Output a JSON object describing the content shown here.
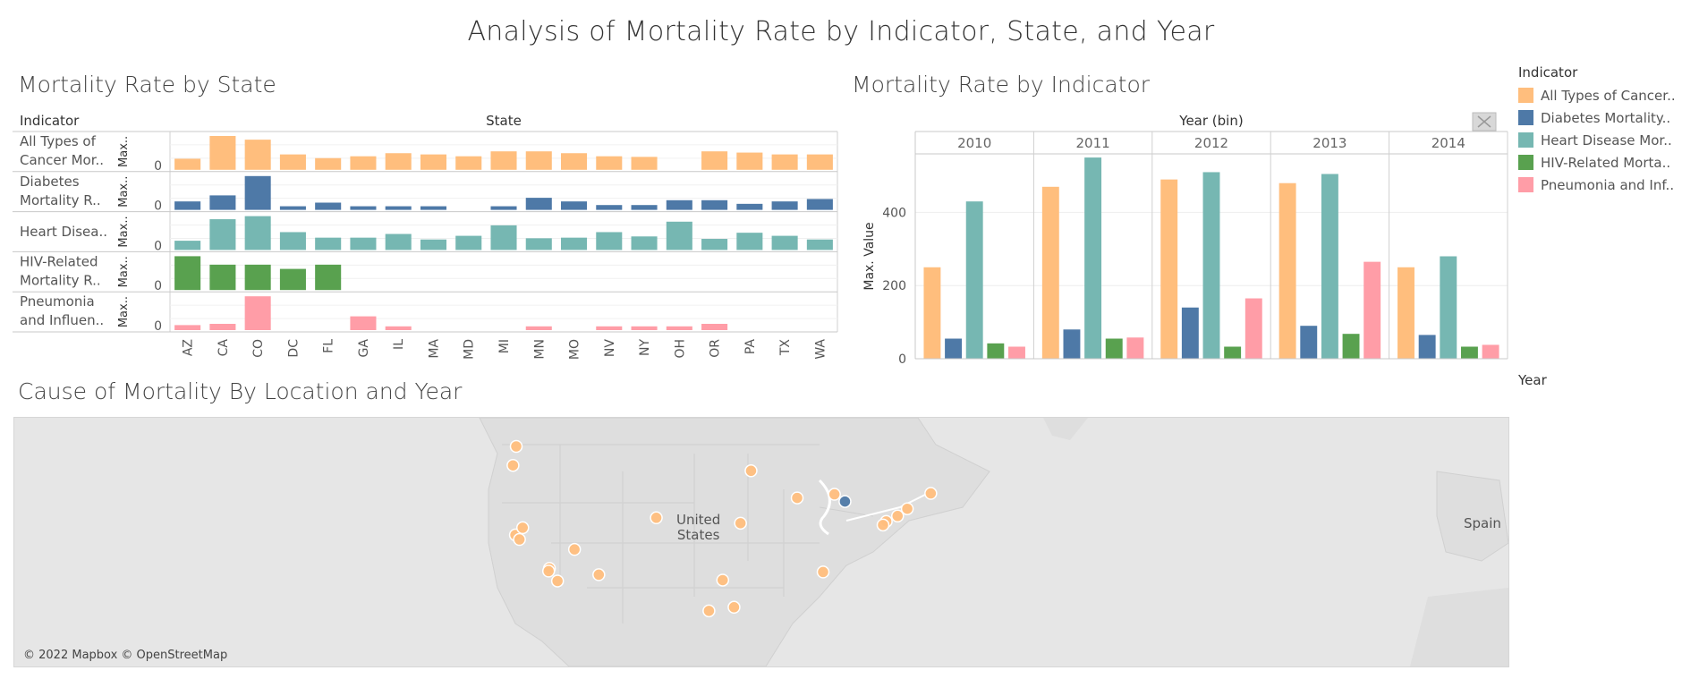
{
  "dashboard": {
    "title": "Analysis of Mortality Rate by Indicator, State, and Year"
  },
  "colors": {
    "All Types of Cancer": "#ffbe7d",
    "Diabetes": "#4e79a7",
    "Heart Disease": "#76b7b2",
    "HIV": "#59a14f",
    "Pneumonia": "#ff9da7"
  },
  "legend": {
    "title": "Indicator",
    "items": [
      {
        "label": "All Types of Cancer..",
        "color": "#ffbe7d"
      },
      {
        "label": "Diabetes Mortality..",
        "color": "#4e79a7"
      },
      {
        "label": "Heart Disease Mor..",
        "color": "#76b7b2"
      },
      {
        "label": "HIV-Related Morta..",
        "color": "#59a14f"
      },
      {
        "label": "Pneumonia and Inf..",
        "color": "#ff9da7"
      }
    ]
  },
  "filters": {
    "year_label": "Year"
  },
  "chart_data": [
    {
      "type": "bar",
      "title": "Mortality Rate by State",
      "row_header": "Indicator",
      "column_header": "State",
      "ylabel": "Max..",
      "zero_label": "0",
      "categories": [
        "AZ",
        "CA",
        "CO",
        "DC",
        "FL",
        "GA",
        "IL",
        "MA",
        "MD",
        "MI",
        "MN",
        "MO",
        "NV",
        "NY",
        "OH",
        "OR",
        "PA",
        "TX",
        "WA"
      ],
      "series": [
        {
          "label_lines": [
            "All Types of",
            "Cancer Mor.."
          ],
          "color": "#ffbe7d",
          "max": 550,
          "values": [
            180,
            550,
            490,
            250,
            190,
            220,
            270,
            250,
            220,
            300,
            300,
            270,
            220,
            210,
            null,
            300,
            280,
            250,
            250
          ]
        },
        {
          "label_lines": [
            "Diabetes",
            "Mortality R.."
          ],
          "color": "#4e79a7",
          "max": 140,
          "values": [
            35,
            60,
            140,
            15,
            30,
            15,
            15,
            15,
            null,
            15,
            50,
            35,
            20,
            20,
            40,
            40,
            25,
            35,
            45
          ]
        },
        {
          "label_lines": [
            "Heart Disea.."
          ],
          "color": "#76b7b2",
          "max": 550,
          "values": [
            150,
            500,
            550,
            290,
            200,
            200,
            260,
            170,
            230,
            400,
            190,
            200,
            290,
            220,
            460,
            180,
            280,
            230,
            170
          ]
        },
        {
          "label_lines": [
            "HIV-Related",
            "Mortality R.."
          ],
          "color": "#59a14f",
          "max": 40,
          "values": [
            40,
            30,
            30,
            25,
            30,
            null,
            null,
            null,
            null,
            null,
            null,
            null,
            null,
            null,
            null,
            null,
            null,
            null,
            null
          ]
        },
        {
          "label_lines": [
            "Pneumonia",
            "and Influen.."
          ],
          "color": "#ff9da7",
          "max": 270,
          "values": [
            40,
            50,
            270,
            null,
            null,
            110,
            30,
            null,
            null,
            null,
            30,
            null,
            30,
            30,
            30,
            50,
            null,
            null,
            null
          ]
        }
      ]
    },
    {
      "type": "bar",
      "title": "Mortality Rate by Indicator",
      "column_header": "Year (bin)",
      "ylabel": "Max. Value",
      "ylim": [
        0,
        560
      ],
      "yticks": [
        0,
        200,
        400
      ],
      "categories": [
        "2010",
        "2011",
        "2012",
        "2013",
        "2014"
      ],
      "series": [
        {
          "color": "#ffbe7d",
          "values": [
            250,
            470,
            490,
            480,
            250
          ]
        },
        {
          "color": "#4e79a7",
          "values": [
            55,
            80,
            140,
            90,
            65
          ]
        },
        {
          "color": "#76b7b2",
          "values": [
            430,
            550,
            510,
            505,
            280
          ]
        },
        {
          "color": "#59a14f",
          "values": [
            42,
            55,
            33,
            68,
            33
          ]
        },
        {
          "color": "#ff9da7",
          "values": [
            33,
            58,
            165,
            265,
            38
          ]
        }
      ]
    }
  ],
  "map": {
    "title": "Cause of Mortality By Location and Year",
    "attribution": "© 2022 Mapbox © OpenStreetMap",
    "labels": {
      "country_line1": "United",
      "country_line2": "States",
      "spain": "Spain"
    },
    "points": [
      {
        "lon": -122.3,
        "lat": 47.6,
        "color": "#ffbe7d"
      },
      {
        "lon": -122.7,
        "lat": 45.5,
        "color": "#ffbe7d"
      },
      {
        "lon": -122.4,
        "lat": 37.8,
        "color": "#ffbe7d"
      },
      {
        "lon": -121.9,
        "lat": 37.3,
        "color": "#ffbe7d"
      },
      {
        "lon": -121.5,
        "lat": 38.6,
        "color": "#ffbe7d"
      },
      {
        "lon": -118.2,
        "lat": 34.1,
        "color": "#ffbe7d"
      },
      {
        "lon": -118.3,
        "lat": 33.8,
        "color": "#ffbe7d"
      },
      {
        "lon": -117.2,
        "lat": 32.7,
        "color": "#ffbe7d"
      },
      {
        "lon": -115.1,
        "lat": 36.2,
        "color": "#ffbe7d"
      },
      {
        "lon": -112.1,
        "lat": 33.4,
        "color": "#ffbe7d"
      },
      {
        "lon": -105.0,
        "lat": 39.7,
        "color": "#ffbe7d"
      },
      {
        "lon": -94.6,
        "lat": 39.1,
        "color": "#ffbe7d"
      },
      {
        "lon": -93.3,
        "lat": 44.9,
        "color": "#ffbe7d"
      },
      {
        "lon": -87.6,
        "lat": 41.9,
        "color": "#ffbe7d"
      },
      {
        "lon": -83.0,
        "lat": 42.3,
        "color": "#ffbe7d"
      },
      {
        "lon": -81.7,
        "lat": 41.5,
        "color": "#4e79a7"
      },
      {
        "lon": -84.4,
        "lat": 33.7,
        "color": "#ffbe7d"
      },
      {
        "lon": -96.8,
        "lat": 32.8,
        "color": "#ffbe7d"
      },
      {
        "lon": -95.4,
        "lat": 29.8,
        "color": "#ffbe7d"
      },
      {
        "lon": -98.5,
        "lat": 29.4,
        "color": "#ffbe7d"
      },
      {
        "lon": -71.1,
        "lat": 42.4,
        "color": "#ffbe7d"
      },
      {
        "lon": -74.0,
        "lat": 40.7,
        "color": "#ffbe7d"
      },
      {
        "lon": -75.2,
        "lat": 39.9,
        "color": "#ffbe7d"
      },
      {
        "lon": -76.6,
        "lat": 39.3,
        "color": "#ffbe7d"
      },
      {
        "lon": -77.0,
        "lat": 38.9,
        "color": "#ffbe7d"
      }
    ]
  }
}
